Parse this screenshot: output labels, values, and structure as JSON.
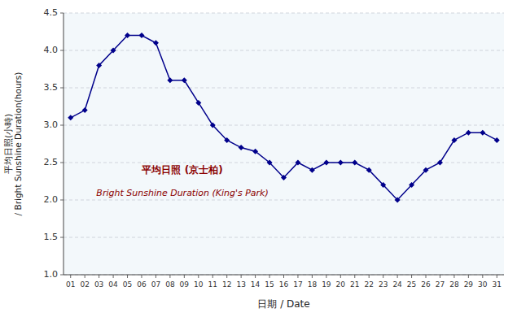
{
  "chart_data": {
    "type": "line",
    "categories": [
      "01",
      "02",
      "03",
      "04",
      "05",
      "06",
      "07",
      "08",
      "09",
      "10",
      "11",
      "12",
      "13",
      "14",
      "15",
      "16",
      "17",
      "18",
      "19",
      "20",
      "21",
      "22",
      "23",
      "24",
      "25",
      "26",
      "27",
      "28",
      "29",
      "30",
      "31"
    ],
    "values": [
      3.1,
      3.2,
      3.8,
      4.0,
      4.2,
      4.2,
      4.1,
      3.6,
      3.6,
      3.3,
      3.0,
      2.8,
      2.7,
      2.65,
      2.5,
      2.3,
      2.5,
      2.4,
      2.5,
      2.5,
      2.5,
      2.4,
      2.2,
      2.0,
      2.2,
      2.4,
      2.5,
      2.8,
      2.9,
      2.9,
      2.8
    ],
    "color": "#00008B",
    "marker": "diamond",
    "x_label": "日期 / Date",
    "y_label": "平均日照(小時)\n/ Bright Sunshine Duration(hours)",
    "annotations": [
      {
        "text": "平均日照 (京士柏)",
        "color": "#8B0000"
      },
      {
        "text": "Bright Sunshine Duration (King's Park)",
        "color": "#8B0000"
      }
    ],
    "ylim": [
      1.0,
      4.5
    ],
    "yticks": [
      {
        "value": 1.0,
        "label": "1.0"
      },
      1.5,
      {
        "value": 2.0,
        "label": "2.0"
      },
      2.5,
      {
        "value": 3.0,
        "label": "3.0"
      },
      3.5,
      {
        "value": 4.0,
        "label": "4.0"
      },
      4.5
    ],
    "grid": true
  }
}
